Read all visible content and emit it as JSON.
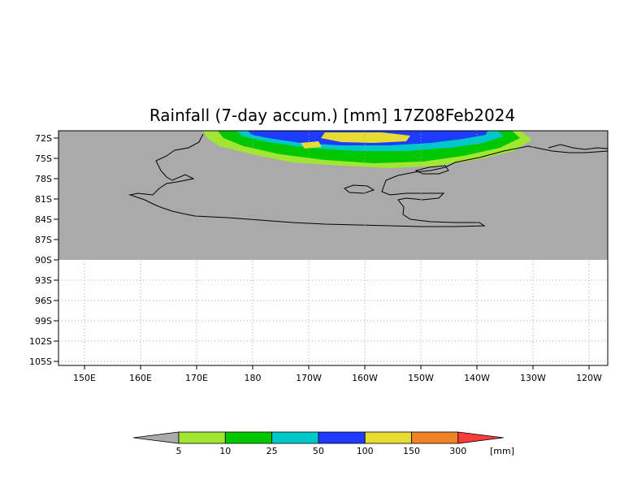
{
  "title": "Rainfall (7-day accum.) [mm] 17Z08Feb2024",
  "map": {
    "lat_labels": [
      "72S",
      "75S",
      "78S",
      "81S",
      "84S",
      "87S",
      "90S",
      "93S",
      "96S",
      "99S",
      "102S",
      "105S"
    ],
    "lon_labels": [
      "150E",
      "160E",
      "170E",
      "180",
      "170W",
      "160W",
      "150W",
      "140W",
      "130W",
      "120W"
    ],
    "land_color": "#aaaaaa",
    "grid": "dotted"
  },
  "colorbar": {
    "labels": [
      "5",
      "10",
      "25",
      "50",
      "100",
      "150",
      "300"
    ],
    "unit": "[mm]",
    "colors": [
      "#a0e632",
      "#00c800",
      "#00c8c8",
      "#1e3cff",
      "#e6dc32",
      "#f08228",
      "#fa3c3c"
    ],
    "under_color": "#aaaaaa"
  }
}
